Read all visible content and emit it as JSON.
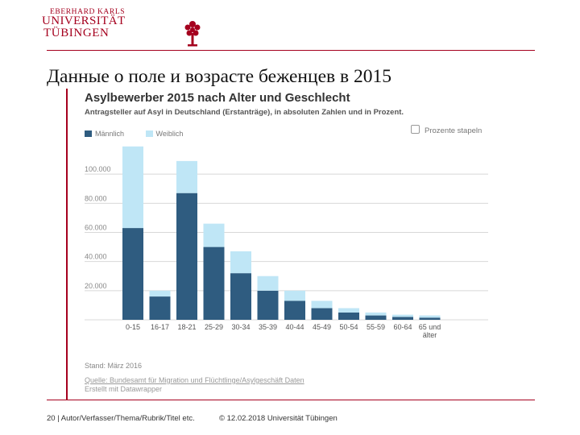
{
  "header": {
    "logo_line1": "EBERHARD KARLS",
    "logo_line2": "UNIVERSITÄT",
    "logo_line3": "TÜBINGEN"
  },
  "slide_title": "Данные о поле и возрасте беженцев в 2015",
  "chart_panel": {
    "stack_percent_label": "Prozente stapeln",
    "stand": "Stand: März 2016",
    "source": "Quelle: Bundesamt für Migration und Flüchtlinge/Asylgeschäft Daten",
    "created_with": "Erstellt mit Datawrapper"
  },
  "chart_data": {
    "type": "bar",
    "stacked": true,
    "title": "Asylbewerber 2015 nach Alter und Geschlecht",
    "subtitle": "Antragsteller auf Asyl in Deutschland (Erstanträge), in absoluten Zahlen und in Prozent.",
    "categories": [
      "0-15",
      "16-17",
      "18-21",
      "25-29",
      "30-34",
      "35-39",
      "40-44",
      "45-49",
      "50-54",
      "55-59",
      "60-64",
      "65 und älter"
    ],
    "series": [
      {
        "name": "Männlich",
        "color": "#2f5c80",
        "values": [
          63000,
          16000,
          87000,
          50000,
          32000,
          20000,
          13000,
          8000,
          5000,
          3000,
          2000,
          1500
        ]
      },
      {
        "name": "Weiblich",
        "color": "#bfe6f6",
        "values": [
          56000,
          4000,
          22000,
          16000,
          15000,
          10000,
          7000,
          5000,
          3000,
          2000,
          1500,
          1500
        ]
      }
    ],
    "yticks": [
      "20.000",
      "40.000",
      "60.000",
      "80.000",
      "100.000"
    ],
    "ytick_values": [
      20000,
      40000,
      60000,
      80000,
      100000
    ],
    "ylim": [
      0,
      120000
    ],
    "grid": true,
    "legend_position": "top-left"
  },
  "footer": {
    "left": "20 | Autor/Verfasser/Thema/Rubrik/Titel etc.",
    "right": "© 12.02.2018 Universität Tübingen"
  }
}
